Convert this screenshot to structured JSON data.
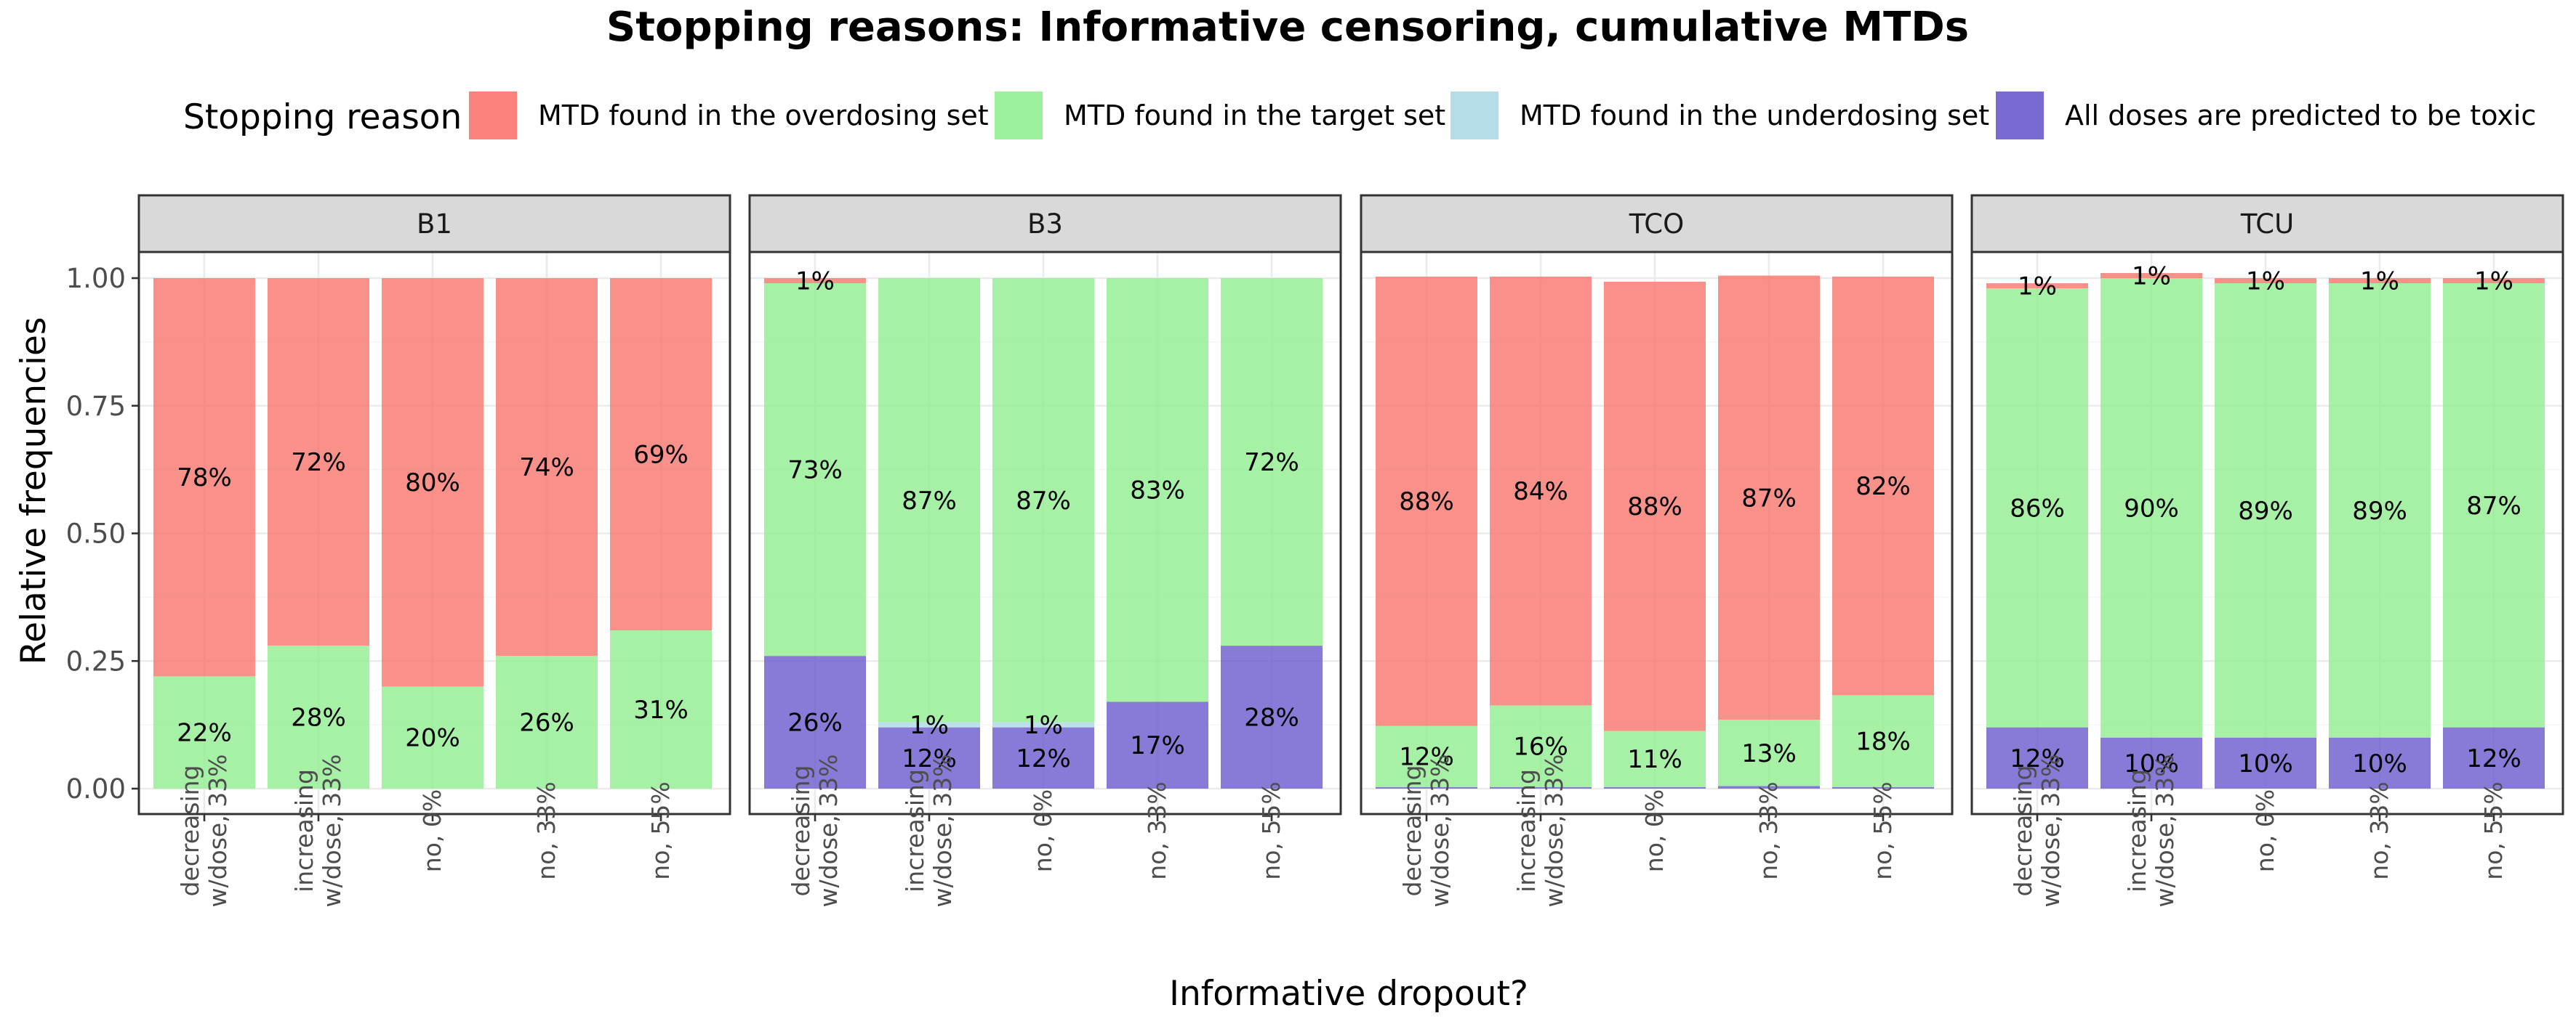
{
  "chart_data": {
    "type": "bar",
    "stacked": true,
    "faceted": true,
    "title": "Stopping reasons: Informative censoring, cumulative MTDs",
    "xlabel": "Informative dropout?",
    "ylabel": "Relative frequencies",
    "ylim": [
      0,
      1.05
    ],
    "yticks": [
      "0.00",
      "0.25",
      "0.50",
      "0.75",
      "1.00"
    ],
    "ytick_values": [
      0,
      0.25,
      0.5,
      0.75,
      1.0
    ],
    "grid": true,
    "legend": {
      "title": "Stopping reason",
      "placement": "top",
      "items": [
        {
          "label": "MTD found in the overdosing set",
          "color": "#f8766d"
        },
        {
          "label": "MTD found in the target set",
          "color": "#90ee90"
        },
        {
          "label": "MTD found in the underdosing set",
          "color": "#add8e6"
        },
        {
          "label": "All doses are predicted to be toxic",
          "color": "#6a5acd"
        }
      ]
    },
    "categories": [
      [
        "decreasing",
        "w/dose, 33%"
      ],
      [
        "increasing",
        "w/dose, 33%"
      ],
      [
        "no, 0%"
      ],
      [
        "no, 33%"
      ],
      [
        "no, 55%"
      ]
    ],
    "panels": [
      {
        "name": "B1",
        "series": [
          {
            "name": "All doses are predicted to be toxic",
            "values": [
              0,
              0,
              0,
              0,
              0
            ],
            "labels": [
              "",
              "",
              "",
              "",
              ""
            ]
          },
          {
            "name": "MTD found in the underdosing set",
            "values": [
              0,
              0,
              0,
              0,
              0
            ],
            "labels": [
              "",
              "",
              "",
              "",
              ""
            ]
          },
          {
            "name": "MTD found in the target set",
            "values": [
              0.22,
              0.28,
              0.2,
              0.26,
              0.31
            ],
            "labels": [
              "22%",
              "28%",
              "20%",
              "26%",
              "31%"
            ]
          },
          {
            "name": "MTD found in the overdosing set",
            "values": [
              0.78,
              0.72,
              0.8,
              0.74,
              0.69
            ],
            "labels": [
              "78%",
              "72%",
              "80%",
              "74%",
              "69%"
            ]
          }
        ]
      },
      {
        "name": "B3",
        "series": [
          {
            "name": "All doses are predicted to be toxic",
            "values": [
              0.26,
              0.12,
              0.12,
              0.17,
              0.28
            ],
            "labels": [
              "26%",
              "12%",
              "12%",
              "17%",
              "28%"
            ]
          },
          {
            "name": "MTD found in the underdosing set",
            "values": [
              0,
              0.01,
              0.01,
              0,
              0
            ],
            "labels": [
              "",
              "1%",
              "1%",
              "",
              ""
            ]
          },
          {
            "name": "MTD found in the target set",
            "values": [
              0.73,
              0.87,
              0.87,
              0.83,
              0.72
            ],
            "labels": [
              "73%",
              "87%",
              "87%",
              "83%",
              "72%"
            ]
          },
          {
            "name": "MTD found in the overdosing set",
            "values": [
              0.01,
              0,
              0,
              0,
              0
            ],
            "labels": [
              "1%",
              "",
              "",
              "",
              ""
            ]
          }
        ]
      },
      {
        "name": "TCO",
        "series": [
          {
            "name": "All doses are predicted to be toxic",
            "values": [
              0.003,
              0.003,
              0.003,
              0.005,
              0.003
            ],
            "labels": [
              "",
              "",
              "",
              "",
              ""
            ]
          },
          {
            "name": "MTD found in the underdosing set",
            "values": [
              0,
              0,
              0,
              0,
              0
            ],
            "labels": [
              "",
              "",
              "",
              "",
              ""
            ]
          },
          {
            "name": "MTD found in the target set",
            "values": [
              0.12,
              0.16,
              0.11,
              0.13,
              0.18
            ],
            "labels": [
              "12%",
              "16%",
              "11%",
              "13%",
              "18%"
            ]
          },
          {
            "name": "MTD found in the overdosing set",
            "values": [
              0.88,
              0.84,
              0.88,
              0.87,
              0.82
            ],
            "labels": [
              "88%",
              "84%",
              "88%",
              "87%",
              "82%"
            ]
          }
        ]
      },
      {
        "name": "TCU",
        "series": [
          {
            "name": "All doses are predicted to be toxic",
            "values": [
              0.12,
              0.1,
              0.1,
              0.1,
              0.12
            ],
            "labels": [
              "12%",
              "10%",
              "10%",
              "10%",
              "12%"
            ]
          },
          {
            "name": "MTD found in the underdosing set",
            "values": [
              0,
              0,
              0,
              0,
              0
            ],
            "labels": [
              "",
              "",
              "",
              "",
              ""
            ]
          },
          {
            "name": "MTD found in the target set",
            "values": [
              0.86,
              0.9,
              0.89,
              0.89,
              0.87
            ],
            "labels": [
              "86%",
              "90%",
              "89%",
              "89%",
              "87%"
            ]
          },
          {
            "name": "MTD found in the overdosing set",
            "values": [
              0.01,
              0.01,
              0.01,
              0.01,
              0.01
            ],
            "labels": [
              "1%",
              "1%",
              "1%",
              "1%",
              "1%"
            ]
          }
        ]
      }
    ]
  }
}
